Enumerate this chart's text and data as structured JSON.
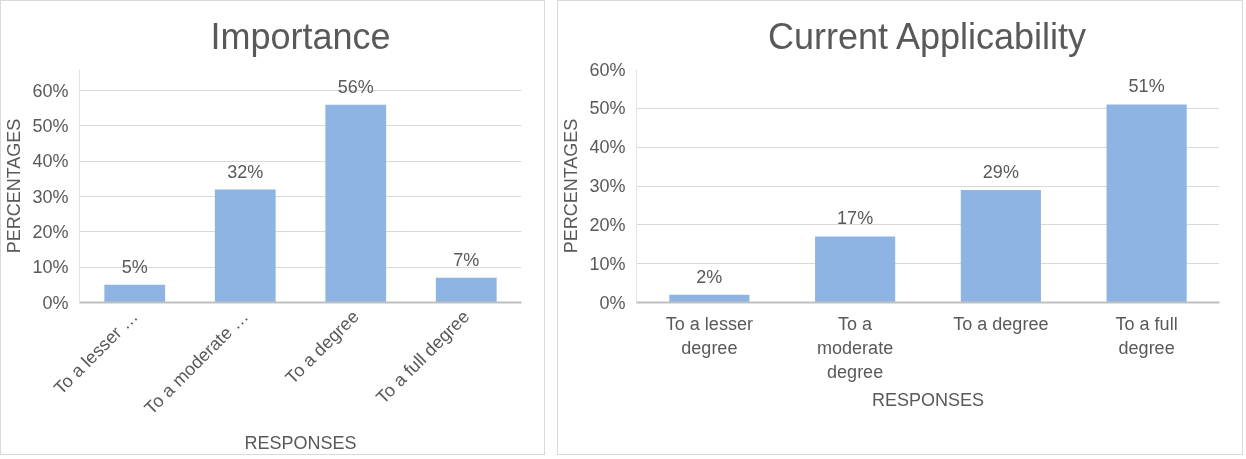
{
  "chart_data": [
    {
      "type": "bar",
      "title": "Importance",
      "xlabel": "RESPONSES",
      "ylabel": "PERCENTAGES",
      "categories": [
        "To a lesser …",
        "To a moderate …",
        "To a degree",
        "To a full degree"
      ],
      "values": [
        5,
        32,
        56,
        7
      ],
      "value_labels": [
        "5%",
        "32%",
        "56%",
        "7%"
      ],
      "color": "#8db4e2",
      "ylim": [
        0,
        66
      ],
      "yticks": [
        {
          "value": 0,
          "label": "0%"
        },
        {
          "value": 10,
          "label": "10%"
        },
        {
          "value": 20,
          "label": "20%"
        },
        {
          "value": 30,
          "label": "30%"
        },
        {
          "value": 40,
          "label": "40%"
        },
        {
          "value": 50,
          "label": "50%"
        },
        {
          "value": 60,
          "label": "60%"
        }
      ],
      "grid": "y"
    },
    {
      "type": "bar",
      "title": "Current Applicability",
      "xlabel": "RESPONSES",
      "ylabel": "PERCENTAGES",
      "categories": [
        "To a lesser degree",
        "To a moderate degree",
        "To a degree",
        "To a full degree"
      ],
      "values": [
        2,
        17,
        29,
        51
      ],
      "value_labels": [
        "2%",
        "17%",
        "29%",
        "51%"
      ],
      "color": "#8db4e2",
      "ylim": [
        0,
        60
      ],
      "yticks": [
        {
          "value": 0,
          "label": "0%"
        },
        {
          "value": 10,
          "label": "10%"
        },
        {
          "value": 20,
          "label": "20%"
        },
        {
          "value": 30,
          "label": "30%"
        },
        {
          "value": 40,
          "label": "40%"
        },
        {
          "value": 50,
          "label": "50%"
        },
        {
          "value": 60,
          "label": "60%"
        }
      ],
      "grid": "y"
    }
  ]
}
